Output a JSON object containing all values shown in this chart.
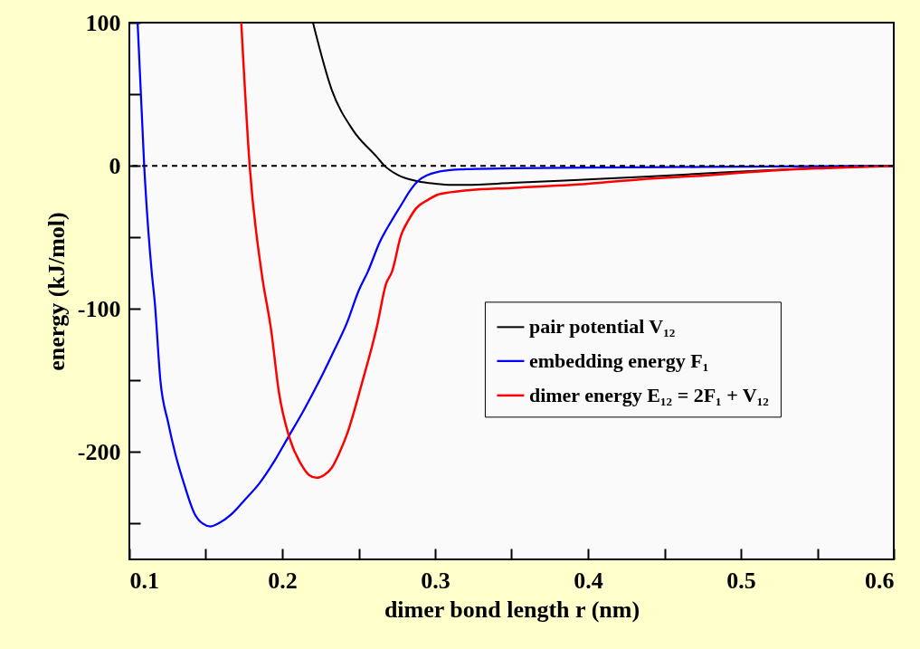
{
  "chart_data": {
    "type": "line",
    "xlabel": "dimer bond length r (nm)",
    "ylabel": "energy (kJ/mol)",
    "xlim": [
      0.1,
      0.6
    ],
    "ylim": [
      -275,
      100
    ],
    "xticks": [
      0.1,
      {
        "value": 0.15,
        "label": null
      },
      0.2,
      {
        "value": 0.25,
        "label": null
      },
      0.3,
      {
        "value": 0.35,
        "label": null
      },
      0.4,
      {
        "value": 0.45,
        "label": null
      },
      0.5,
      {
        "value": 0.55,
        "label": null
      },
      0.6
    ],
    "yticks": [
      {
        "value": -250,
        "label": null
      },
      -200,
      {
        "value": -150,
        "label": null
      },
      -100,
      {
        "value": -50,
        "label": null
      },
      0,
      {
        "value": 50,
        "label": null
      },
      100
    ],
    "series": [
      {
        "name": "pair potential V₁₂",
        "color": "#000000",
        "x": [
          0.2201,
          0.2324,
          0.2462,
          0.262,
          0.2669,
          0.2757,
          0.2886,
          0.3,
          0.3112,
          0.32,
          0.35,
          0.4,
          0.434,
          0.48,
          0.525,
          0.56,
          0.6
        ],
        "values": [
          100,
          53,
          25,
          6,
          0,
          -6.5,
          -10.8,
          -12.5,
          -13.3,
          -13.3,
          -12,
          -9.5,
          -7.8,
          -5.2,
          -2.7,
          -1.2,
          0
        ]
      },
      {
        "name": "embedding energy F₁",
        "color": "#0000ff",
        "x": [
          0.1054,
          0.1097,
          0.1146,
          0.1166,
          0.1203,
          0.1254,
          0.13,
          0.1357,
          0.1426,
          0.148,
          0.1531,
          0.158,
          0.1672,
          0.175,
          0.185,
          0.1945,
          0.2037,
          0.2145,
          0.2244,
          0.2335,
          0.2422,
          0.2501,
          0.256,
          0.2639,
          0.2712,
          0.2777,
          0.2835,
          0.2886,
          0.295,
          0.3014,
          0.31,
          0.323,
          0.35,
          0.4,
          0.45,
          0.5,
          0.55,
          0.6
        ],
        "values": [
          100,
          0,
          -74,
          -95,
          -150,
          -179.5,
          -201,
          -222,
          -243,
          -250,
          -252,
          -250,
          -243,
          -234,
          -222,
          -207,
          -190,
          -170,
          -150,
          -130,
          -110,
          -87,
          -74,
          -53,
          -39,
          -27.6,
          -17.5,
          -10.8,
          -6.5,
          -4.4,
          -3,
          -2.3,
          -1.8,
          -1.3,
          -1,
          -0.6,
          -0.3,
          0
        ]
      },
      {
        "name": "dimer energy E₁₂ = 2F₁ + V₁₂",
        "color": "#ff0000",
        "x": [
          0.1732,
          0.1787,
          0.1864,
          0.1929,
          0.1978,
          0.2047,
          0.2126,
          0.2175,
          0.2225,
          0.2275,
          0.2324,
          0.2372,
          0.2422,
          0.2521,
          0.262,
          0.2679,
          0.2718,
          0.2777,
          0.2826,
          0.2876,
          0.295,
          0.3014,
          0.31,
          0.323,
          0.35,
          0.4,
          0.434,
          0.48,
          0.525,
          0.56,
          0.6
        ],
        "values": [
          100,
          0,
          -74,
          -116,
          -158,
          -190,
          -209,
          -216,
          -218,
          -216,
          -211,
          -201,
          -188,
          -152,
          -112,
          -82.5,
          -74,
          -48.7,
          -38,
          -29.7,
          -24,
          -20.3,
          -18.5,
          -17,
          -15.5,
          -12.5,
          -9.5,
          -6.5,
          -3,
          -1.5,
          0
        ]
      }
    ],
    "ref_lines": [
      {
        "axis": "y",
        "value": 0,
        "color": "#000000",
        "line_style": "dashed"
      }
    ],
    "legend": "right",
    "grid": false,
    "marker": "none",
    "line_style": "solid"
  }
}
